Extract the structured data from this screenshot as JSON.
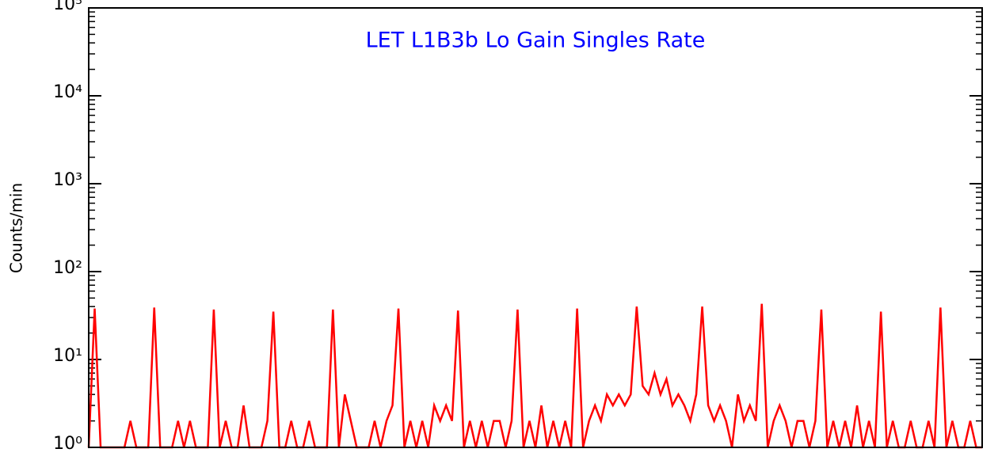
{
  "chart_data": {
    "type": "line",
    "title": "LET L1B3b Lo Gain Singles Rate",
    "y_label": "Counts/min",
    "log_y": true,
    "ylim": [
      1,
      100000
    ],
    "yticks": [
      {
        "value": 1,
        "label": "10⁰"
      },
      {
        "value": 10,
        "label": "10¹"
      },
      {
        "value": 100,
        "label": "10²"
      },
      {
        "value": 1000,
        "label": "10³"
      },
      {
        "value": 10000,
        "label": "10⁴"
      },
      {
        "value": 100000,
        "label": "10⁵"
      }
    ],
    "xlim": [
      0,
      150
    ],
    "x": [
      0,
      1,
      2,
      3,
      4,
      5,
      6,
      7,
      8,
      9,
      10,
      11,
      12,
      13,
      14,
      15,
      16,
      17,
      18,
      19,
      20,
      21,
      22,
      23,
      24,
      25,
      26,
      27,
      28,
      29,
      30,
      31,
      32,
      33,
      34,
      35,
      36,
      37,
      38,
      39,
      40,
      41,
      42,
      43,
      44,
      45,
      46,
      47,
      48,
      49,
      50,
      51,
      52,
      53,
      54,
      55,
      56,
      57,
      58,
      59,
      60,
      61,
      62,
      63,
      64,
      65,
      66,
      67,
      68,
      69,
      70,
      71,
      72,
      73,
      74,
      75,
      76,
      77,
      78,
      79,
      80,
      81,
      82,
      83,
      84,
      85,
      86,
      87,
      88,
      89,
      90,
      91,
      92,
      93,
      94,
      95,
      96,
      97,
      98,
      99,
      100,
      101,
      102,
      103,
      104,
      105,
      106,
      107,
      108,
      109,
      110,
      111,
      112,
      113,
      114,
      115,
      116,
      117,
      118,
      119,
      120,
      121,
      122,
      123,
      124,
      125,
      126,
      127,
      128,
      129,
      130,
      131,
      132,
      133,
      134,
      135,
      136,
      137,
      138,
      139,
      140,
      141,
      142,
      143,
      144,
      145,
      146,
      147,
      148,
      149,
      150
    ],
    "series": [
      {
        "color": "#ff0000",
        "values": [
          1,
          38,
          1,
          1,
          1,
          1,
          1,
          2,
          1,
          1,
          1,
          39,
          1,
          1,
          1,
          2,
          1,
          2,
          1,
          1,
          1,
          37,
          1,
          2,
          1,
          1,
          3,
          1,
          1,
          1,
          2,
          35,
          1,
          1,
          2,
          1,
          1,
          2,
          1,
          1,
          1,
          37,
          1,
          4,
          2,
          1,
          1,
          1,
          2,
          1,
          2,
          3,
          38,
          1,
          2,
          1,
          2,
          1,
          3,
          2,
          3,
          2,
          36,
          1,
          2,
          1,
          2,
          1,
          2,
          2,
          1,
          2,
          37,
          1,
          2,
          1,
          3,
          1,
          2,
          1,
          2,
          1,
          38,
          1,
          2,
          3,
          2,
          4,
          3,
          4,
          3,
          4,
          40,
          5,
          4,
          7,
          4,
          6,
          3,
          4,
          3,
          2,
          4,
          40,
          3,
          2,
          3,
          2,
          1,
          4,
          2,
          3,
          2,
          43,
          1,
          2,
          3,
          2,
          1,
          2,
          2,
          1,
          2,
          37,
          1,
          2,
          1,
          2,
          1,
          3,
          1,
          2,
          1,
          35,
          1,
          2,
          1,
          1,
          2,
          1,
          1,
          2,
          1,
          39,
          1,
          2,
          1,
          1,
          2,
          1,
          1
        ]
      }
    ]
  }
}
